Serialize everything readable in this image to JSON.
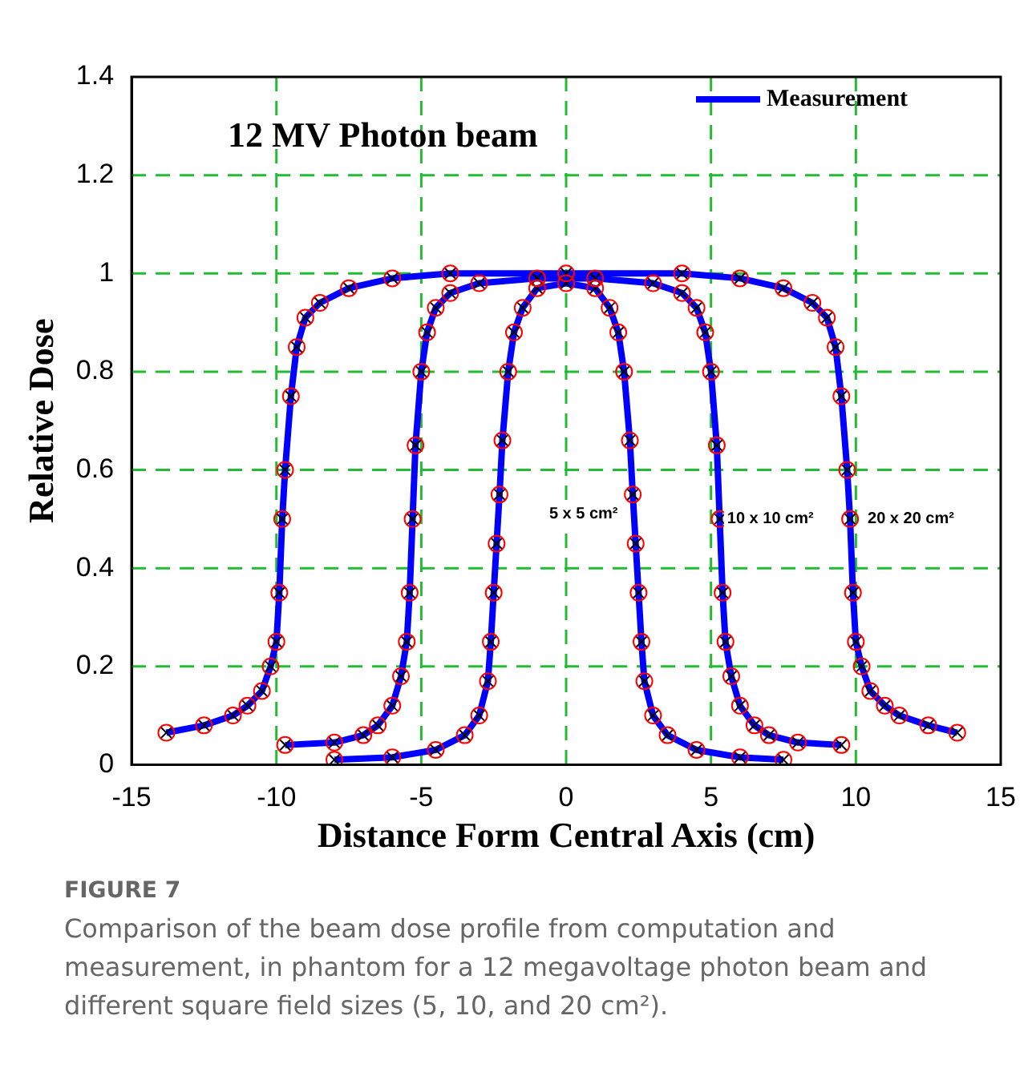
{
  "chart_data": {
    "type": "line",
    "title": "12 MV Photon beam",
    "xlabel": "Distance Form Central Axis (cm)",
    "ylabel": "Relative Dose",
    "xlim": [
      -15,
      15
    ],
    "xticks": [
      -15,
      -10,
      -5,
      0,
      5,
      10,
      15
    ],
    "ylim": [
      0,
      1.4
    ],
    "yticks": [
      0,
      0.2,
      0.4,
      0.6,
      0.8,
      1,
      1.2,
      1.4
    ],
    "grid": true,
    "legend": "top right",
    "line_style": "solid",
    "series": [
      {
        "name": "Measurement",
        "type": "line",
        "marker": "none",
        "color": "#0000ff",
        "x": [
          -13.8,
          -12.5,
          -11.5,
          -11,
          -10.5,
          -10.2,
          -10,
          -9.9,
          -9.8,
          -9.7,
          -9.5,
          -9.3,
          -9,
          -8.5,
          -7.5,
          -6,
          -4,
          0,
          4,
          6,
          7.5,
          8.5,
          9,
          9.3,
          9.5,
          9.7,
          9.8,
          9.9,
          10,
          10.2,
          10.5,
          11,
          11.5,
          12.5,
          13.5
        ],
        "values": [
          0.065,
          0.08,
          0.1,
          0.12,
          0.15,
          0.2,
          0.25,
          0.35,
          0.5,
          0.6,
          0.75,
          0.85,
          0.91,
          0.94,
          0.97,
          0.99,
          1,
          1,
          1,
          0.99,
          0.97,
          0.94,
          0.91,
          0.85,
          0.75,
          0.6,
          0.5,
          0.35,
          0.25,
          0.2,
          0.15,
          0.12,
          0.1,
          0.08,
          0.065
        ]
      },
      {
        "type": "line",
        "marker": "none",
        "color": "#0000ff",
        "x": [
          -9.7,
          -8,
          -7,
          -6.5,
          -6,
          -5.7,
          -5.5,
          -5.4,
          -5.3,
          -5.2,
          -5,
          -4.8,
          -4.5,
          -4,
          -3,
          -1,
          1,
          3,
          4,
          4.5,
          4.8,
          5,
          5.2,
          5.3,
          5.4,
          5.5,
          5.7,
          6,
          6.5,
          7,
          8,
          9.5
        ],
        "values": [
          0.04,
          0.045,
          0.06,
          0.08,
          0.12,
          0.18,
          0.25,
          0.35,
          0.5,
          0.65,
          0.8,
          0.88,
          0.93,
          0.96,
          0.98,
          0.99,
          0.99,
          0.98,
          0.96,
          0.93,
          0.88,
          0.8,
          0.65,
          0.5,
          0.35,
          0.25,
          0.18,
          0.12,
          0.08,
          0.06,
          0.045,
          0.04
        ]
      },
      {
        "type": "line",
        "marker": "none",
        "color": "#0000ff",
        "x": [
          -8,
          -6,
          -4.5,
          -3.5,
          -3,
          -2.7,
          -2.6,
          -2.5,
          -2.4,
          -2.3,
          -2.2,
          -2,
          -1.8,
          -1.5,
          -1,
          0,
          1,
          1.5,
          1.8,
          2,
          2.2,
          2.3,
          2.4,
          2.5,
          2.6,
          2.7,
          3,
          3.5,
          4.5,
          6,
          7.5
        ],
        "values": [
          0.01,
          0.015,
          0.03,
          0.06,
          0.1,
          0.17,
          0.25,
          0.35,
          0.45,
          0.55,
          0.66,
          0.8,
          0.88,
          0.93,
          0.97,
          0.98,
          0.97,
          0.93,
          0.88,
          0.8,
          0.66,
          0.55,
          0.45,
          0.35,
          0.25,
          0.17,
          0.1,
          0.06,
          0.03,
          0.015,
          0.01
        ]
      },
      {
        "type": "scatter",
        "marker": "circle",
        "color": "#ff0000",
        "x": [
          -13.8,
          -12.5,
          -11.5,
          -11,
          -10.5,
          -10.2,
          -10,
          -9.9,
          -9.8,
          -9.7,
          -9.5,
          -9.3,
          -9,
          -8.5,
          -7.5,
          -6,
          -4,
          0,
          4,
          6,
          7.5,
          8.5,
          9,
          9.3,
          9.5,
          9.7,
          9.8,
          9.9,
          10,
          10.2,
          10.5,
          11,
          11.5,
          12.5,
          13.5
        ],
        "values": [
          0.065,
          0.08,
          0.1,
          0.12,
          0.15,
          0.2,
          0.25,
          0.35,
          0.5,
          0.6,
          0.75,
          0.85,
          0.91,
          0.94,
          0.97,
          0.99,
          1,
          1,
          1,
          0.99,
          0.97,
          0.94,
          0.91,
          0.85,
          0.75,
          0.6,
          0.5,
          0.35,
          0.25,
          0.2,
          0.15,
          0.12,
          0.1,
          0.08,
          0.065
        ]
      },
      {
        "type": "scatter",
        "marker": "circle",
        "color": "#ff0000",
        "x": [
          -9.7,
          -8,
          -7,
          -6.5,
          -6,
          -5.7,
          -5.5,
          -5.4,
          -5.3,
          -5.2,
          -5,
          -4.8,
          -4.5,
          -4,
          -3,
          -1,
          1,
          3,
          4,
          4.5,
          4.8,
          5,
          5.2,
          5.3,
          5.4,
          5.5,
          5.7,
          6,
          6.5,
          7,
          8,
          9.5
        ],
        "values": [
          0.04,
          0.045,
          0.06,
          0.08,
          0.12,
          0.18,
          0.25,
          0.35,
          0.5,
          0.65,
          0.8,
          0.88,
          0.93,
          0.96,
          0.98,
          0.99,
          0.99,
          0.98,
          0.96,
          0.93,
          0.88,
          0.8,
          0.65,
          0.5,
          0.35,
          0.25,
          0.18,
          0.12,
          0.08,
          0.06,
          0.045,
          0.04
        ]
      },
      {
        "type": "scatter",
        "marker": "circle",
        "color": "#ff0000",
        "x": [
          -8,
          -6,
          -4.5,
          -3.5,
          -3,
          -2.7,
          -2.6,
          -2.5,
          -2.4,
          -2.3,
          -2.2,
          -2,
          -1.8,
          -1.5,
          -1,
          0,
          1,
          1.5,
          1.8,
          2,
          2.2,
          2.3,
          2.4,
          2.5,
          2.6,
          2.7,
          3,
          3.5,
          4.5,
          6,
          7.5
        ],
        "values": [
          0.01,
          0.015,
          0.03,
          0.06,
          0.1,
          0.17,
          0.25,
          0.35,
          0.45,
          0.55,
          0.66,
          0.8,
          0.88,
          0.93,
          0.97,
          0.98,
          0.97,
          0.93,
          0.88,
          0.8,
          0.66,
          0.55,
          0.45,
          0.35,
          0.25,
          0.17,
          0.1,
          0.06,
          0.03,
          0.015,
          0.01
        ]
      },
      {
        "type": "scatter",
        "marker": "cross",
        "color": "#000000",
        "x": [
          -13.8,
          -12.5,
          -11.5,
          -11,
          -10.5,
          -10.2,
          -10,
          -9.9,
          -9.8,
          -9.7,
          -9.5,
          -9.3,
          -9,
          -8.5,
          -7.5,
          -6,
          -4,
          0,
          4,
          6,
          7.5,
          8.5,
          9,
          9.3,
          9.5,
          9.7,
          9.8,
          9.9,
          10,
          10.2,
          10.5,
          11,
          11.5,
          12.5,
          13.5
        ],
        "values": [
          0.065,
          0.08,
          0.1,
          0.12,
          0.15,
          0.2,
          0.25,
          0.35,
          0.5,
          0.6,
          0.75,
          0.85,
          0.91,
          0.94,
          0.97,
          0.99,
          1,
          1,
          1,
          0.99,
          0.97,
          0.94,
          0.91,
          0.85,
          0.75,
          0.6,
          0.5,
          0.35,
          0.25,
          0.2,
          0.15,
          0.12,
          0.1,
          0.08,
          0.065
        ]
      },
      {
        "type": "scatter",
        "marker": "cross",
        "color": "#000000",
        "x": [
          -9.7,
          -8,
          -7,
          -6.5,
          -6,
          -5.7,
          -5.5,
          -5.4,
          -5.3,
          -5.2,
          -5,
          -4.8,
          -4.5,
          -4,
          -3,
          -1,
          1,
          3,
          4,
          4.5,
          4.8,
          5,
          5.2,
          5.3,
          5.4,
          5.5,
          5.7,
          6,
          6.5,
          7,
          8,
          9.5
        ],
        "values": [
          0.04,
          0.045,
          0.06,
          0.08,
          0.12,
          0.18,
          0.25,
          0.35,
          0.5,
          0.65,
          0.8,
          0.88,
          0.93,
          0.96,
          0.98,
          0.99,
          0.99,
          0.98,
          0.96,
          0.93,
          0.88,
          0.8,
          0.65,
          0.5,
          0.35,
          0.25,
          0.18,
          0.12,
          0.08,
          0.06,
          0.045,
          0.04
        ]
      },
      {
        "type": "scatter",
        "marker": "cross",
        "color": "#000000",
        "x": [
          -8,
          -6,
          -4.5,
          -3.5,
          -3,
          -2.7,
          -2.6,
          -2.5,
          -2.4,
          -2.3,
          -2.2,
          -2,
          -1.8,
          -1.5,
          -1,
          0,
          1,
          1.5,
          1.8,
          2,
          2.2,
          2.3,
          2.4,
          2.5,
          2.6,
          2.7,
          3,
          3.5,
          4.5,
          6,
          7.5
        ],
        "values": [
          0.01,
          0.015,
          0.03,
          0.06,
          0.1,
          0.17,
          0.25,
          0.35,
          0.45,
          0.55,
          0.66,
          0.8,
          0.88,
          0.93,
          0.97,
          0.98,
          0.97,
          0.93,
          0.88,
          0.8,
          0.66,
          0.55,
          0.45,
          0.35,
          0.25,
          0.17,
          0.1,
          0.06,
          0.03,
          0.015,
          0.01
        ]
      }
    ],
    "annotations": [
      "5 x 5 cm²",
      "10 x 10 cm²",
      "20 x 20 cm²",
      "FIGURE 7",
      "Comparison of the beam dose profile from computation and measurement, in phantom for a 12 megavoltage photon beam and different square field sizes (5, 10, and 20 cm²)."
    ]
  }
}
